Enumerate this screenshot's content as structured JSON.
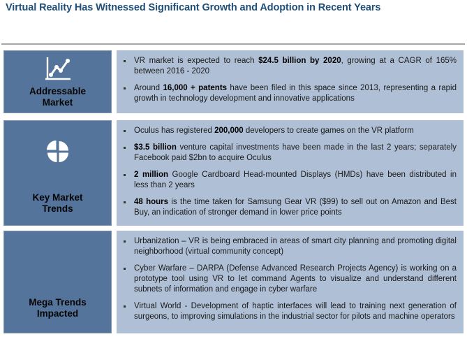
{
  "title": "Virtual Reality Has Witnessed Significant Growth and Adoption in Recent Years",
  "colors": {
    "title_color": "#1F4E79",
    "divider_color": "#A6A6A6",
    "label_box_fill": "#54749B",
    "label_box_border": "#8096AE",
    "panel_fill": "#AFBFD5",
    "body_text": "#1A1A1A",
    "icon_color": "#FFFFFF"
  },
  "sections": [
    {
      "label": "Addressable Market",
      "icon": "line-chart-icon",
      "bullets": [
        {
          "segments": [
            {
              "text": "VR market is expected to reach ",
              "bold": false
            },
            {
              "text": "$24.5 billion by 2020",
              "bold": true
            },
            {
              "text": ", growing at a CAGR of 165% between 2016 - 2020",
              "bold": false
            }
          ]
        },
        {
          "segments": [
            {
              "text": "Around ",
              "bold": false
            },
            {
              "text": "16,000 + patents",
              "bold": true
            },
            {
              "text": " have been filed in this space since 2013, representing a rapid growth in technology development and innovative applications",
              "bold": false
            }
          ]
        }
      ]
    },
    {
      "label": "Key Market Trends",
      "icon": "pie-chart-icon",
      "bullets": [
        {
          "segments": [
            {
              "text": "Oculus has registered ",
              "bold": false
            },
            {
              "text": "200,000",
              "bold": true
            },
            {
              "text": " developers to create games on the VR platform",
              "bold": false
            }
          ]
        },
        {
          "segments": [
            {
              "text": "$3.5 billion",
              "bold": true
            },
            {
              "text": " venture capital investments have been made in the last 2 years; separately Facebook paid $2bn to acquire Oculus",
              "bold": false
            }
          ]
        },
        {
          "segments": [
            {
              "text": "2 million",
              "bold": true
            },
            {
              "text": " Google Cardboard Head-mounted Displays (HMDs) have been distributed in less than 2 years",
              "bold": false
            }
          ]
        },
        {
          "segments": [
            {
              "text": "48 hours",
              "bold": true
            },
            {
              "text": " is the time taken for Samsung Gear VR ($99) to sell out on Amazon and Best Buy, an indication of stronger demand in lower price points",
              "bold": false
            }
          ]
        }
      ]
    },
    {
      "label": "Mega Trends Impacted",
      "icon": null,
      "bullets": [
        {
          "segments": [
            {
              "text": "Urbanization – VR is being embraced in areas of smart city planning and promoting digital neighborhood (virtual community concept)",
              "bold": false
            }
          ]
        },
        {
          "segments": [
            {
              "text": "Cyber Warfare – DARPA (Defense Advanced Research Projects Agency) is working on a prototype tool using VR to let command Agents to visualize and understand different subnets of information and engage in cyber warfare",
              "bold": false
            }
          ]
        },
        {
          "segments": [
            {
              "text": "Virtual World - Development of haptic interfaces will lead to training next generation of surgeons, to improving simulations in the industrial sector for pilots and machine operators",
              "bold": false
            }
          ]
        }
      ]
    }
  ]
}
